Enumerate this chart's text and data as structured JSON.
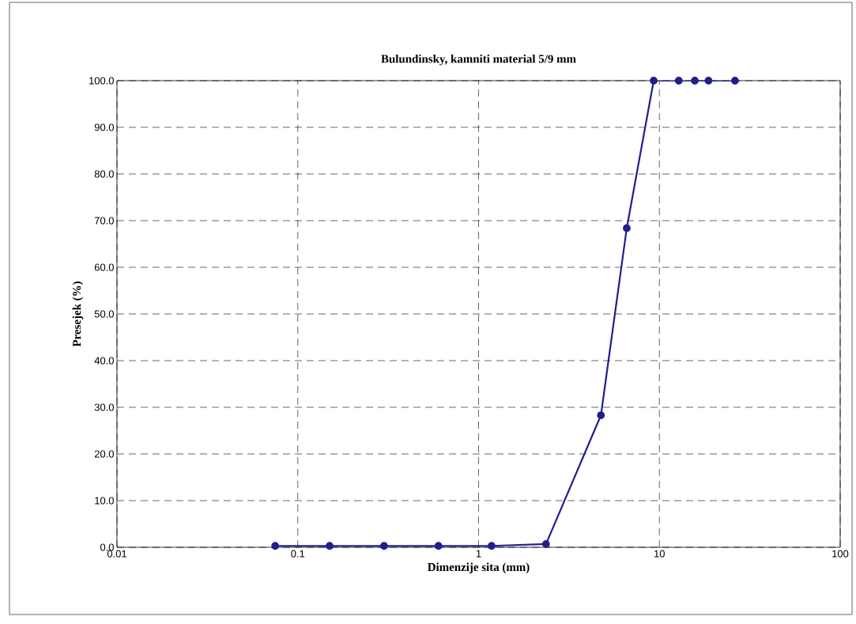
{
  "chart_data": {
    "type": "line",
    "title": "Bulundinsky, kamniti material 5/9 mm",
    "xlabel": "Dimenzije sita (mm)",
    "ylabel": "Presejek (%)",
    "x": [
      0.075,
      0.15,
      0.3,
      0.6,
      1.18,
      2.36,
      4.75,
      6.6,
      9.3,
      12.8,
      15.7,
      18.7,
      26.2
    ],
    "series": [
      {
        "color": "#1f1f8f",
        "values": [
          0.3,
          0.3,
          0.3,
          0.3,
          0.3,
          0.7,
          28.3,
          68.4,
          100,
          100,
          100,
          100,
          100
        ]
      }
    ],
    "log": "x",
    "xlim": [
      0.01,
      100
    ],
    "xticks": [
      0.01,
      0.1,
      1,
      10,
      100
    ],
    "ylim": [
      0,
      100
    ],
    "yticks": [
      {
        "value": 0,
        "label": "0.0"
      },
      {
        "value": 10,
        "label": "10.0"
      },
      {
        "value": 20,
        "label": "20.0"
      },
      {
        "value": 30,
        "label": "30.0"
      },
      {
        "value": 40,
        "label": "40.0"
      },
      {
        "value": 50,
        "label": "50.0"
      },
      {
        "value": 60,
        "label": "60.0"
      },
      {
        "value": 70,
        "label": "70.0"
      },
      {
        "value": 80,
        "label": "80.0"
      },
      {
        "value": 90,
        "label": "90.0"
      },
      {
        "value": 100,
        "label": "100.0"
      }
    ],
    "grid": true,
    "marker": "circle",
    "line_style": "solid"
  }
}
